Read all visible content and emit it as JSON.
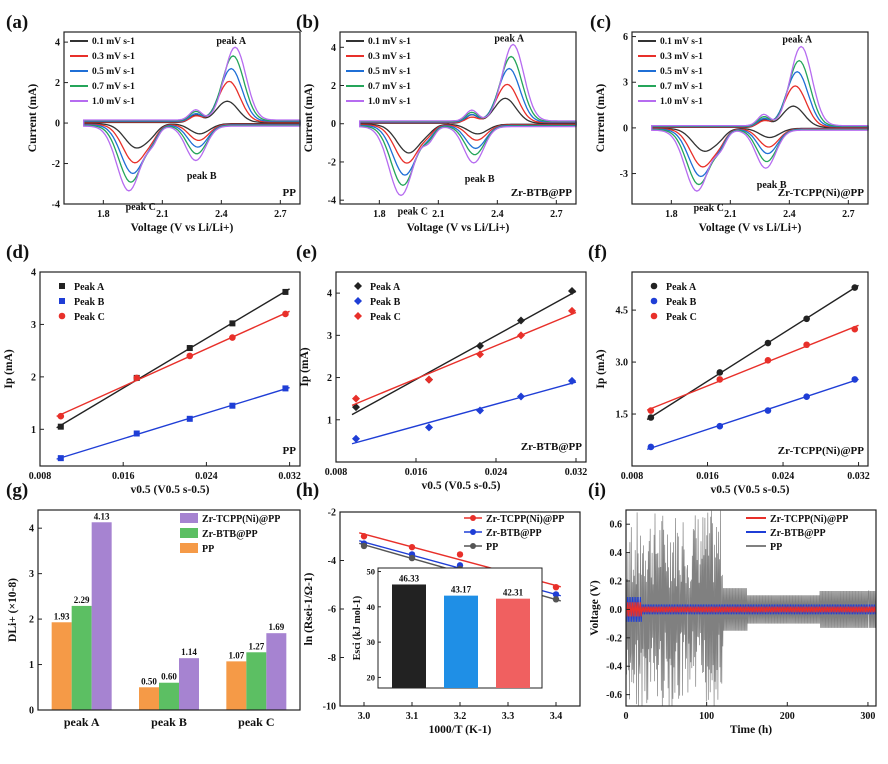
{
  "chart_data": [
    {
      "id": "a",
      "panel_label": "(a)",
      "type": "line",
      "xlabel": "Voltage (V vs Li/Li+)",
      "ylabel": "Current (mA)",
      "xlim": [
        1.6,
        2.8
      ],
      "ylim": [
        -4.0,
        4.5
      ],
      "xticks": [
        "1.8",
        "2.1",
        "2.4",
        "2.7"
      ],
      "yticks": [
        "-4",
        "-2",
        "0",
        "2",
        "4"
      ],
      "tag": "PP",
      "peak_labels": [
        "peak A",
        "peak B",
        "peak C"
      ],
      "cv": {
        "pA": 2.43,
        "pB": 2.29,
        "pC": 1.97,
        "A": [
          1.05,
          2.0,
          2.6,
          3.2,
          3.6
        ],
        "B": [
          -0.5,
          -0.8,
          -1.1,
          -1.4,
          -1.7
        ],
        "C": [
          -1.2,
          -1.9,
          -2.4,
          -2.8,
          -3.2
        ]
      },
      "series": [
        {
          "name": "0.1 mV s-1",
          "color": "#333333"
        },
        {
          "name": "0.3 mV s-1",
          "color": "#e8302a"
        },
        {
          "name": "0.5 mV s-1",
          "color": "#1f6fd6"
        },
        {
          "name": "0.7 mV s-1",
          "color": "#25a55a"
        },
        {
          "name": "1.0 mV s-1",
          "color": "#b66cf0"
        }
      ]
    },
    {
      "id": "b",
      "panel_label": "(b)",
      "type": "line",
      "xlabel": "Voltage (V vs Li/Li+)",
      "ylabel": "Current (mA)",
      "xlim": [
        1.6,
        2.8
      ],
      "ylim": [
        -4.2,
        4.8
      ],
      "xticks": [
        "1.8",
        "2.1",
        "2.4",
        "2.7"
      ],
      "yticks": [
        "-4",
        "-2",
        "0",
        "2",
        "4"
      ],
      "tag": "Zr-BTB@PP",
      "peak_labels": [
        "peak A",
        "peak B",
        "peak C"
      ],
      "cv": {
        "pA": 2.44,
        "pB": 2.3,
        "pC": 1.95,
        "A": [
          1.3,
          2.0,
          2.8,
          3.4,
          4.0
        ],
        "B": [
          -0.5,
          -0.8,
          -1.2,
          -1.5,
          -1.9
        ],
        "C": [
          -1.5,
          -2.0,
          -2.6,
          -3.1,
          -3.6
        ]
      },
      "series": [
        {
          "name": "0.1 mV s-1",
          "color": "#333333"
        },
        {
          "name": "0.3 mV s-1",
          "color": "#e8302a"
        },
        {
          "name": "0.5 mV s-1",
          "color": "#1f6fd6"
        },
        {
          "name": "0.7 mV s-1",
          "color": "#25a55a"
        },
        {
          "name": "1.0 mV s-1",
          "color": "#b66cf0"
        }
      ]
    },
    {
      "id": "c",
      "panel_label": "(c)",
      "type": "line",
      "xlabel": "Voltage (V vs Li/Li+)",
      "ylabel": "Current (mA)",
      "xlim": [
        1.6,
        2.8
      ],
      "ylim": [
        -5.0,
        6.3
      ],
      "xticks": [
        "1.8",
        "2.1",
        "2.4",
        "2.7"
      ],
      "yticks": [
        "-3",
        "0",
        "3",
        "6"
      ],
      "tag": "Zr-TCPP(Ni)@PP",
      "peak_labels": [
        "peak A",
        "peak B",
        "peak C"
      ],
      "cv": {
        "pA": 2.42,
        "pB": 2.3,
        "pC": 1.97,
        "A": [
          1.4,
          2.7,
          3.6,
          4.3,
          5.2
        ],
        "B": [
          -0.6,
          -1.2,
          -1.6,
          -2.1,
          -2.5
        ],
        "C": [
          -1.5,
          -2.5,
          -3.1,
          -3.6,
          -4.0
        ]
      },
      "series": [
        {
          "name": "0.1 mV s-1",
          "color": "#333333"
        },
        {
          "name": "0.3 mV s-1",
          "color": "#e8302a"
        },
        {
          "name": "0.5 mV s-1",
          "color": "#1f6fd6"
        },
        {
          "name": "0.7 mV s-1",
          "color": "#25a55a"
        },
        {
          "name": "1.0 mV s-1",
          "color": "#b66cf0"
        }
      ]
    },
    {
      "id": "d",
      "panel_label": "(d)",
      "type": "scatter",
      "xlabel": "v0.5 (V0.5 s-0.5)",
      "ylabel": "Ip (mA)",
      "xlim": [
        0.008,
        0.033
      ],
      "ylim": [
        0.3,
        4.0
      ],
      "xticks": [
        "0.008",
        "0.016",
        "0.024",
        "0.032"
      ],
      "yticks": [
        "1",
        "2",
        "3",
        "4"
      ],
      "tag": "PP",
      "x": [
        0.01,
        0.0173,
        0.0224,
        0.0265,
        0.0316
      ],
      "series": [
        {
          "name": "Peak A",
          "color": "#222222",
          "marker": "square",
          "values": [
            1.05,
            1.98,
            2.55,
            3.02,
            3.62
          ]
        },
        {
          "name": "Peak B",
          "color": "#1f3ed6",
          "marker": "square",
          "values": [
            0.45,
            0.92,
            1.2,
            1.45,
            1.78
          ]
        },
        {
          "name": "Peak C",
          "color": "#e8302a",
          "marker": "circle",
          "values": [
            1.25,
            1.98,
            2.4,
            2.75,
            3.2
          ]
        }
      ]
    },
    {
      "id": "e",
      "panel_label": "(e)",
      "type": "scatter",
      "xlabel": "v0.5 (V0.5 s-0.5)",
      "ylabel": "Ip (mA)",
      "xlim": [
        0.008,
        0.033
      ],
      "ylim": [
        0.0,
        4.5
      ],
      "xticks": [
        "0.008",
        "0.016",
        "0.024",
        "0.032"
      ],
      "yticks": [
        "1",
        "2",
        "3",
        "4"
      ],
      "tag": "Zr-BTB@PP",
      "x": [
        0.01,
        0.0173,
        0.0224,
        0.0265,
        0.0316
      ],
      "series": [
        {
          "name": "Peak A",
          "color": "#222222",
          "marker": "diamond",
          "values": [
            1.3,
            1.95,
            2.75,
            3.35,
            4.05
          ]
        },
        {
          "name": "Peak B",
          "color": "#1f3ed6",
          "marker": "diamond",
          "values": [
            0.55,
            0.82,
            1.22,
            1.55,
            1.92
          ]
        },
        {
          "name": "Peak C",
          "color": "#e8302a",
          "marker": "diamond",
          "values": [
            1.5,
            1.95,
            2.55,
            3.0,
            3.58
          ]
        }
      ]
    },
    {
      "id": "f",
      "panel_label": "(f)",
      "type": "scatter",
      "xlabel": "v0.5 (V0.5 s-0.5)",
      "ylabel": "Ip (mA)",
      "xlim": [
        0.008,
        0.033
      ],
      "ylim": [
        0.0,
        5.6
      ],
      "xticks": [
        "0.008",
        "0.016",
        "0.024",
        "0.032"
      ],
      "yticks": [
        "1.5",
        "3.0",
        "4.5"
      ],
      "tag": "Zr-TCPP(Ni)@PP",
      "x": [
        0.01,
        0.0173,
        0.0224,
        0.0265,
        0.0316
      ],
      "series": [
        {
          "name": "Peak A",
          "color": "#222222",
          "marker": "circle",
          "values": [
            1.4,
            2.7,
            3.55,
            4.25,
            5.15
          ]
        },
        {
          "name": "Peak B",
          "color": "#1f3ed6",
          "marker": "circle",
          "values": [
            0.55,
            1.15,
            1.6,
            2.0,
            2.5
          ]
        },
        {
          "name": "Peak C",
          "color": "#e8302a",
          "marker": "circle",
          "values": [
            1.6,
            2.5,
            3.05,
            3.5,
            3.95
          ]
        }
      ]
    },
    {
      "id": "g",
      "panel_label": "(g)",
      "type": "bar",
      "ylabel": "DLi+ (×10-8)",
      "ylim": [
        0,
        4.4
      ],
      "yticks": [
        "0",
        "1",
        "2",
        "3",
        "4"
      ],
      "categories": [
        "peak A",
        "peak B",
        "peak C"
      ],
      "series": [
        {
          "name": "PP",
          "color": "#f59a47",
          "values": [
            1.93,
            0.5,
            1.07
          ],
          "labels": [
            "1.93",
            "0.50",
            "1.07"
          ]
        },
        {
          "name": "Zr-BTB@PP",
          "color": "#5cbf63",
          "values": [
            2.29,
            0.6,
            1.27
          ],
          "labels": [
            "2.29",
            "0.60",
            "1.27"
          ]
        },
        {
          "name": "Zr-TCPP(Ni)@PP",
          "color": "#a683d1",
          "values": [
            4.13,
            1.14,
            1.69
          ],
          "labels": [
            "4.13",
            "1.14",
            "1.69"
          ]
        }
      ],
      "legend_order": [
        "Zr-TCPP(Ni)@PP",
        "Zr-BTB@PP",
        "PP"
      ]
    },
    {
      "id": "h",
      "panel_label": "(h)",
      "type": "scatter",
      "xlabel": "1000/T (K-1)",
      "ylabel": "ln (Rsei-1/Ω-1)",
      "xlim": [
        2.95,
        3.45
      ],
      "ylim": [
        -10,
        -2
      ],
      "xticks": [
        "3.0",
        "3.1",
        "3.2",
        "3.3",
        "3.4"
      ],
      "yticks": [
        "-10",
        "-8",
        "-6",
        "-4",
        "-2"
      ],
      "x": [
        3.0,
        3.1,
        3.2,
        3.3,
        3.4
      ],
      "series": [
        {
          "name": "Zr-TCPP(Ni)@PP",
          "color": "#e8302a",
          "values": [
            -3.0,
            -3.45,
            -3.75,
            -4.55,
            -5.1
          ]
        },
        {
          "name": "Zr-BTB@PP",
          "color": "#1f3ed6",
          "values": [
            -3.3,
            -3.75,
            -4.2,
            -4.95,
            -5.4
          ]
        },
        {
          "name": "PP",
          "color": "#555555",
          "values": [
            -3.4,
            -3.9,
            -4.35,
            -5.15,
            -5.6
          ]
        }
      ],
      "inset": {
        "type": "bar",
        "ylabel": "Esci (kJ mol-1)",
        "ylim": [
          17,
          51
        ],
        "yticks": [
          "20",
          "30",
          "40",
          "50"
        ],
        "values": [
          46.33,
          43.17,
          42.31
        ],
        "labels": [
          "46.33",
          "43.17",
          "42.31"
        ],
        "colors": [
          "#222222",
          "#1f8fe6",
          "#f06060"
        ]
      }
    },
    {
      "id": "i",
      "panel_label": "(i)",
      "type": "line",
      "xlabel": "Time (h)",
      "ylabel": "Voltage (V)",
      "xlim": [
        0,
        310
      ],
      "ylim": [
        -0.68,
        0.7
      ],
      "xticks": [
        "0",
        "100",
        "200",
        "300"
      ],
      "yticks": [
        "-0.6",
        "-0.4",
        "-0.2",
        "0.0",
        "0.2",
        "0.4",
        "0.6"
      ],
      "series": [
        {
          "name": "Zr-TCPP(Ni)@PP",
          "color": "#e8302a"
        },
        {
          "name": "Zr-BTB@PP",
          "color": "#1f3ed6"
        },
        {
          "name": "PP",
          "color": "#808080"
        }
      ]
    }
  ]
}
